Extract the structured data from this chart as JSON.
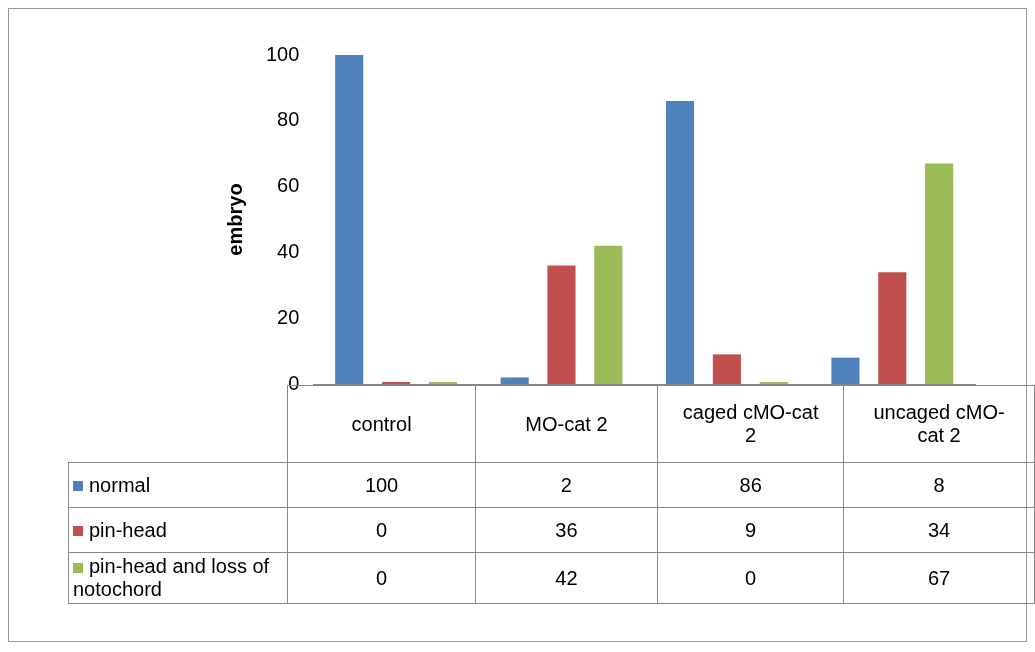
{
  "chart_data": {
    "type": "bar",
    "ylabel": "embryo",
    "categories": [
      "control",
      "MO-cat 2",
      "caged cMO-cat 2",
      "uncaged cMO-cat 2"
    ],
    "series": [
      {
        "name": "normal",
        "color": "#4f81bd",
        "values": [
          100,
          2,
          86,
          8
        ]
      },
      {
        "name": "pin-head",
        "color": "#c0504d",
        "values": [
          0,
          36,
          9,
          34
        ]
      },
      {
        "name": "pin-head and loss of notochord",
        "color": "#9bbb59",
        "values": [
          0,
          42,
          0,
          67
        ]
      }
    ],
    "ylim": [
      0,
      100
    ],
    "yticks": [
      0,
      20,
      40,
      60,
      80,
      100
    ],
    "grid": false,
    "legend": "bottom",
    "data_labels": true
  }
}
